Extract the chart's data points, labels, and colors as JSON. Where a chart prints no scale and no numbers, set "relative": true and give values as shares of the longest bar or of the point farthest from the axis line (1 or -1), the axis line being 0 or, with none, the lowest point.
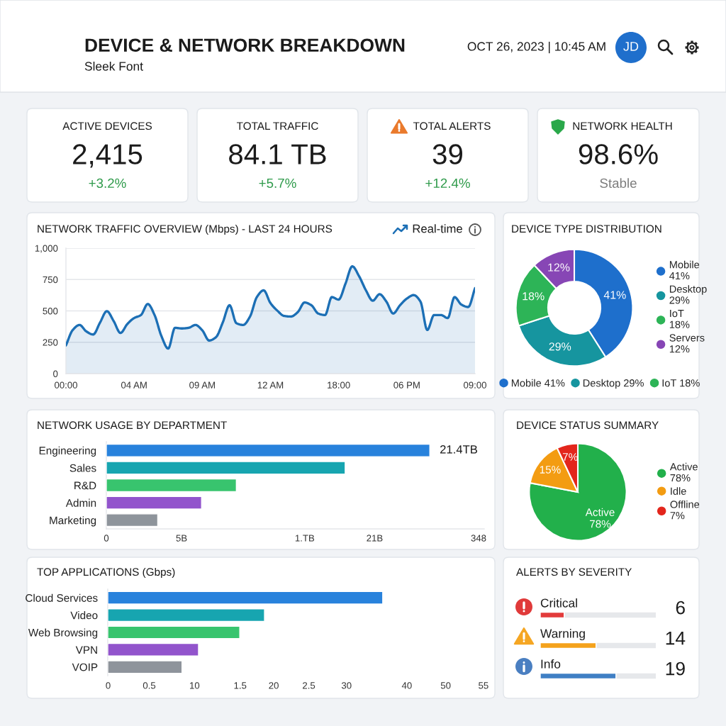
{
  "chart_data": [
    {
      "type": "other",
      "title": "DEVICE & NETWORK BREAKDOWN",
      "subtitle": "Sleek Font",
      "annotations": [
        "OCT 26, 2023 | 10:45 AM",
        "JD"
      ]
    },
    {
      "type": "other",
      "title": "ACTIVE DEVICES",
      "annotations": [
        "2,415",
        "+3.2%"
      ],
      "color": "#2e9a4a"
    },
    {
      "type": "other",
      "title": "TOTAL TRAFFIC",
      "annotations": [
        "84.1 TB",
        "+5.7%"
      ],
      "color": "#2e9a4a"
    },
    {
      "type": "other",
      "title": "TOTAL ALERTS",
      "annotations": [
        "39",
        "+12.4%"
      ],
      "color": "#2e9a4a"
    },
    {
      "type": "other",
      "title": "NETWORK HEALTH",
      "annotations": [
        "98.6%",
        "Stable"
      ],
      "color": "#7d7d7d"
    },
    {
      "type": "area",
      "title": "NETWORK TRAFFIC OVERVIEW (Mbps) - LAST 24 HOURS",
      "annotations": [
        "Real-time"
      ],
      "categories": [
        "00:00",
        null,
        null,
        null,
        null,
        null,
        null,
        null,
        null,
        null,
        "04 AM",
        null,
        null,
        null,
        null,
        null,
        null,
        null,
        null,
        null,
        "09 AM",
        null,
        null,
        null,
        null,
        null,
        null,
        null,
        null,
        null,
        "12 AM",
        null,
        null,
        null,
        null,
        null,
        null,
        null,
        null,
        null,
        "18:00",
        null,
        null,
        null,
        null,
        null,
        null,
        null,
        null,
        null,
        "06 PM",
        null,
        null,
        null,
        null,
        null,
        null,
        null,
        null,
        null,
        "09:00"
      ],
      "values": [
        225,
        348,
        388,
        336,
        312,
        407,
        498,
        419,
        324,
        395,
        443,
        467,
        555,
        467,
        300,
        200,
        365,
        360,
        365,
        388,
        345,
        264,
        290,
        407,
        545,
        402,
        388,
        455,
        610,
        664,
        562,
        502,
        460,
        455,
        490,
        567,
        545,
        479,
        467,
        610,
        590,
        717,
        855,
        776,
        664,
        581,
        633,
        574,
        479,
        545,
        598,
        626,
        574,
        348,
        467,
        467,
        443,
        610,
        550,
        531,
        681
      ],
      "color": "#1c6fb5",
      "ylim": [
        0,
        1000
      ],
      "yticks": [
        0,
        250,
        500,
        750,
        {
          "value": 1000,
          "label": "1,000"
        }
      ],
      "grid": "y"
    },
    {
      "type": "donut",
      "title": "DEVICE TYPE DISTRIBUTION",
      "categories": [
        "Mobile\n41%",
        "Desktop\n29%",
        "IoT\n18%",
        "Servers\n12%"
      ],
      "values": [
        41,
        29,
        18,
        12
      ],
      "colors": [
        "#1e6fcc",
        "#16959f",
        "#2db457",
        "#8746b5"
      ],
      "value_labels": [
        "41%",
        "29%",
        "18%",
        "12%"
      ],
      "legend": "right",
      "annotations": [
        "Mobile 41%",
        "Desktop 29%",
        "IoT 18%"
      ]
    },
    {
      "type": "bar",
      "orientation": "horizontal",
      "title": "NETWORK USAGE BY DEPARTMENT",
      "categories": [
        "Engineering",
        "Sales",
        "R&D",
        "Admin",
        "Marketing"
      ],
      "values": [
        21.4,
        15.8,
        8.6,
        6.3,
        3.4
      ],
      "colors": [
        "#2882dc",
        "#17a5b0",
        "#38c46e",
        "#9254cc",
        "#8e949b"
      ],
      "value_labels": [
        "21.4TB",
        null,
        null,
        null,
        null
      ],
      "annotations": [
        "0",
        "5B",
        "1.TB",
        "21B",
        "348"
      ]
    },
    {
      "type": "pie",
      "title": "DEVICE STATUS SUMMARY",
      "categories": [
        "Active\n78%",
        "Idle",
        "Offline\n7%"
      ],
      "values": [
        78,
        15,
        7
      ],
      "colors": [
        "#22b04b",
        "#f39c12",
        "#e3261c"
      ],
      "value_labels": [
        "Active\n78%",
        "15%",
        "7%"
      ],
      "legend": "right"
    },
    {
      "type": "bar",
      "orientation": "horizontal",
      "title": "TOP APPLICATIONS (Gbps)",
      "categories": [
        "Cloud Services",
        "Video",
        "Web Browsing",
        "VPN",
        "VOIP"
      ],
      "values": [
        1,
        0.57,
        0.48,
        0.33,
        0.27
      ],
      "relative": true,
      "colors": [
        "#2882dc",
        "#17a5b0",
        "#38c46e",
        "#9254cc",
        "#8e949b"
      ],
      "annotations": [
        "0",
        "0.5",
        "10",
        "1.5",
        "20",
        "2.5",
        "30",
        "40",
        "50",
        "55"
      ]
    },
    {
      "type": "bar",
      "orientation": "horizontal",
      "title": "ALERTS BY SEVERITY",
      "categories": [
        "Critical",
        "Warning",
        "Info"
      ],
      "values": [
        6,
        14,
        19
      ],
      "colors": [
        "#e23b3b",
        "#f4a21c",
        "#3f7fc4"
      ],
      "data_labels": true,
      "xlim": [
        0,
        29
      ],
      "tick_labels": "y"
    }
  ]
}
